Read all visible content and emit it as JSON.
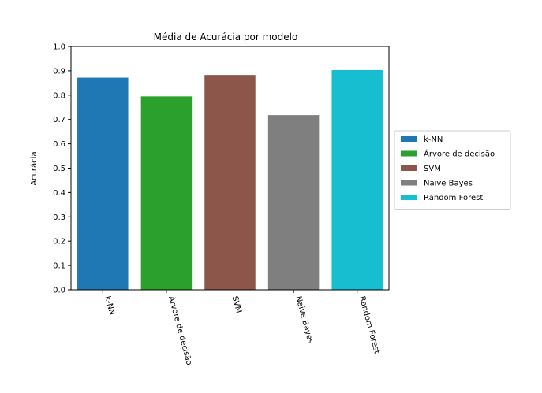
{
  "chart_data": {
    "type": "bar",
    "title": "Média de Acurácia por modelo",
    "xlabel": "",
    "ylabel": "Acurácia",
    "ylim": [
      0,
      1.0
    ],
    "yticks": [
      "0.0",
      "0.1",
      "0.2",
      "0.3",
      "0.4",
      "0.5",
      "0.6",
      "0.7",
      "0.8",
      "0.9",
      "1.0"
    ],
    "categories": [
      "k-NN",
      "Árvore de decisão",
      "SVM",
      "Naive Bayes",
      "Random Forest"
    ],
    "values": [
      0.872,
      0.795,
      0.883,
      0.718,
      0.903
    ],
    "colors": [
      "#1f77b4",
      "#2ca02c",
      "#8c564b",
      "#7f7f7f",
      "#17becf"
    ],
    "legend": {
      "placement": "right",
      "entries": [
        "k-NN",
        "Árvore de decisão",
        "SVM",
        "Naive Bayes",
        "Random Forest"
      ]
    },
    "grid": false
  }
}
